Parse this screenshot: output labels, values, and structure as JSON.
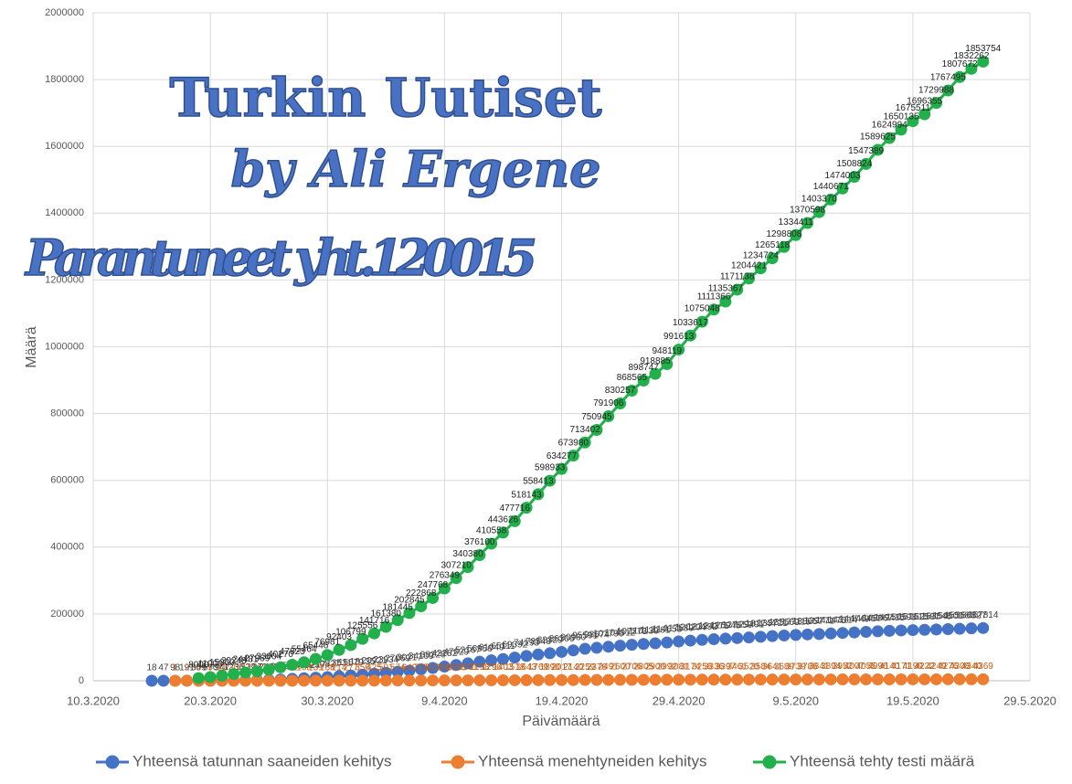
{
  "chart_data": {
    "type": "line",
    "watermark": {
      "title": "Turkin Uutiset",
      "byline": "by Ali Ergene",
      "note": "Parantuneet yht.120015"
    },
    "x_label": "Päivämäärä",
    "y_label": "Määrä",
    "x": [
      "15.3.2020",
      "16.3.2020",
      "17.3.2020",
      "18.3.2020",
      "19.3.2020",
      "20.3.2020",
      "21.3.2020",
      "22.3.2020",
      "23.3.2020",
      "24.3.2020",
      "25.3.2020",
      "26.3.2020",
      "27.3.2020",
      "28.3.2020",
      "29.3.2020",
      "30.3.2020",
      "31.3.2020",
      "1.4.2020",
      "2.4.2020",
      "3.4.2020",
      "4.4.2020",
      "5.4.2020",
      "6.4.2020",
      "7.4.2020",
      "8.4.2020",
      "9.4.2020",
      "10.4.2020",
      "11.4.2020",
      "12.4.2020",
      "13.4.2020",
      "14.4.2020",
      "15.4.2020",
      "16.4.2020",
      "17.4.2020",
      "18.4.2020",
      "19.4.2020",
      "20.4.2020",
      "21.4.2020",
      "22.4.2020",
      "23.4.2020",
      "24.4.2020",
      "25.4.2020",
      "26.4.2020",
      "27.4.2020",
      "28.4.2020",
      "29.4.2020",
      "30.4.2020",
      "1.5.2020",
      "2.5.2020",
      "3.5.2020",
      "4.5.2020",
      "5.5.2020",
      "6.5.2020",
      "7.5.2020",
      "8.5.2020",
      "9.5.2020",
      "10.5.2020",
      "11.5.2020",
      "12.5.2020",
      "13.5.2020",
      "14.5.2020",
      "15.5.2020",
      "16.5.2020",
      "17.5.2020",
      "18.5.2020",
      "19.5.2020",
      "20.5.2020",
      "21.5.2020",
      "22.5.2020",
      "23.5.2020",
      "24.5.2020",
      "25.5.2020"
    ],
    "series": [
      {
        "name": "Yhteensä tatunnan saaneiden kehitys",
        "color": "#4472c4",
        "label_color": "#404040",
        "values": [
          18,
          47,
          98,
          191,
          359,
          670,
          947,
          1236,
          1529,
          1872,
          2433,
          3629,
          5698,
          7402,
          9217,
          10827,
          13531,
          15679,
          18135,
          20921,
          23934,
          27069,
          30217,
          34109,
          38226,
          42282,
          47029,
          52167,
          56956,
          61049,
          65111,
          69392,
          74193,
          78546,
          82329,
          86306,
          90980,
          95591,
          98674,
          101790,
          104912,
          107773,
          110130,
          112261,
          114653,
          117589,
          120204,
          122392,
          124375,
          126045,
          127659,
          129491,
          131744,
          133721,
          135569,
          137115,
          138657,
          139771,
          141475,
          143114,
          144749,
          146457,
          148067,
          149435,
          150593,
          151615,
          152587,
          153548,
          154500,
          155686,
          156827,
          157814
        ]
      },
      {
        "name": "Yhteensä menehtyneiden kehitys",
        "color": "#ed7d31",
        "label_color": "#c55a11",
        "values": [
          null,
          null,
          1,
          2,
          4,
          9,
          21,
          30,
          37,
          44,
          59,
          75,
          92,
          108,
          131,
          168,
          214,
          277,
          356,
          425,
          501,
          574,
          649,
          725,
          812,
          908,
          1006,
          1101,
          1198,
          1296,
          1403,
          1518,
          1643,
          1769,
          1890,
          2017,
          2140,
          2259,
          2376,
          2491,
          2600,
          2706,
          2805,
          2900,
          2992,
          3081,
          3174,
          3258,
          3336,
          3397,
          3461,
          3520,
          3584,
          3641,
          3689,
          3739,
          3786,
          3841,
          3894,
          3952,
          4007,
          4055,
          4096,
          4140,
          4171,
          4199,
          4222,
          4249,
          4276,
          4308,
          4340,
          4369
        ]
      },
      {
        "name": "Yhteensä tehty testi määrä",
        "color": "#21b04b",
        "label_color": "#222222",
        "values": [
          null,
          null,
          null,
          null,
          8000,
          11000,
          15000,
          20248,
          24481,
          27969,
          33004,
          40270,
          47823,
          55464,
          65446,
          76981,
          92403,
          106799,
          125556,
          141716,
          161380,
          181445,
          202845,
          222868,
          247768,
          276349,
          307210,
          340380,
          376100,
          410558,
          443626,
          477716,
          518143,
          558413,
          598933,
          634277,
          673980,
          713402,
          750945,
          791906,
          830257,
          868565,
          898747,
          918885,
          948119,
          991613,
          1033617,
          1075048,
          1111366,
          1135367,
          1171138,
          1204421,
          1234724,
          1265118,
          1298808,
          1334411,
          1370598,
          1403370,
          1440671,
          1474003,
          1508824,
          1547389,
          1589625,
          1624994,
          1650135,
          1675511,
          1696355,
          1729988,
          1767495,
          1807672,
          1832262,
          1853754
        ]
      }
    ],
    "xlim": [
      "10.3.2020",
      "29.5.2020"
    ],
    "xticks": [
      "10.3.2020",
      "20.3.2020",
      "30.3.2020",
      "9.4.2020",
      "19.4.2020",
      "29.4.2020",
      "9.5.2020",
      "19.5.2020",
      "29.5.2020"
    ],
    "ylim": [
      0,
      2000000
    ],
    "yticks": [
      0,
      200000,
      400000,
      600000,
      800000,
      1000000,
      1200000,
      1400000,
      1600000,
      1800000,
      2000000
    ],
    "grid": true,
    "legend": "bottom"
  }
}
